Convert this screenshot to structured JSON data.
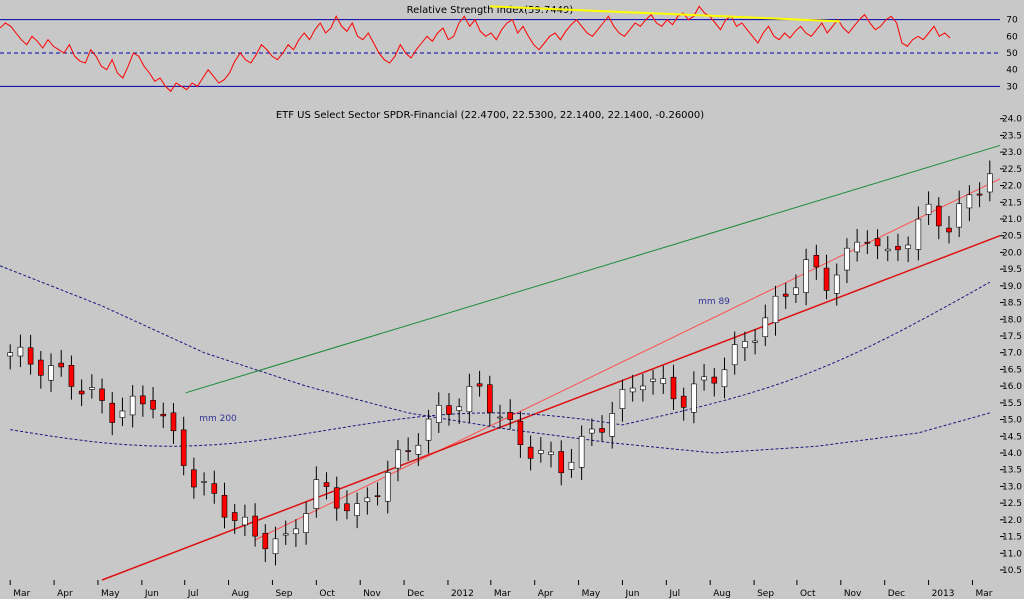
{
  "chart_data": [
    {
      "type": "line",
      "title": "Relative Strength Index(59.7449)",
      "ylim": [
        20,
        80
      ],
      "y_ticks": [
        30,
        40,
        50,
        60,
        70
      ],
      "reference_lines": {
        "solid": [
          30,
          70
        ],
        "dashed": [
          50
        ]
      },
      "colors": {
        "rsi": "#ff0000",
        "trendline": "#ffff00",
        "levels": "#0000aa"
      },
      "trendline": {
        "from": {
          "x": 49.0,
          "y": 78
        },
        "to": {
          "x": 84.0,
          "y": 69
        }
      },
      "series": [
        {
          "values": [
            65,
            68,
            66,
            62,
            58,
            55,
            60,
            57,
            53,
            58,
            54,
            52,
            50,
            55,
            48,
            45,
            44,
            52,
            48,
            42,
            40,
            46,
            38,
            35,
            42,
            50,
            48,
            42,
            38,
            33,
            35,
            30,
            27,
            32,
            30,
            28,
            32,
            30,
            35,
            40,
            36,
            32,
            34,
            38,
            45,
            50,
            46,
            44,
            49,
            55,
            52,
            48,
            46,
            50,
            55,
            52,
            58,
            62,
            58,
            64,
            68,
            62,
            65,
            72,
            66,
            63,
            68,
            60,
            58,
            62,
            56,
            50,
            46,
            44,
            48,
            55,
            50,
            47,
            52,
            56,
            60,
            57,
            62,
            65,
            58,
            60,
            68,
            72,
            66,
            70,
            63,
            60,
            62,
            58,
            64,
            68,
            70,
            62,
            66,
            60,
            55,
            52,
            56,
            60,
            62,
            58,
            63,
            67,
            70,
            66,
            62,
            60,
            64,
            68,
            72,
            66,
            62,
            60,
            64,
            68,
            66,
            70,
            73,
            68,
            66,
            70,
            67,
            72,
            74,
            70,
            72,
            78,
            74,
            72,
            68,
            64,
            70,
            72,
            66,
            68,
            64,
            60,
            56,
            62,
            66,
            60,
            58,
            62,
            59,
            63,
            66,
            62,
            60,
            64,
            68,
            62,
            66,
            70,
            65,
            62,
            66,
            70,
            73,
            68,
            64,
            66,
            70,
            72,
            68,
            56,
            54,
            58,
            60,
            58,
            62,
            66,
            60,
            62,
            59
          ]
        }
      ]
    },
    {
      "type": "candlestick",
      "title": "ETF US Select Sector SPDR-Financial (22.4700, 22.5300, 22.1400, 22.1400, -0.26000)",
      "ylim": [
        10.2,
        24.2
      ],
      "y_ticks": [
        10.5,
        11.0,
        11.5,
        12.0,
        12.5,
        13.0,
        13.5,
        14.0,
        14.5,
        15.0,
        15.5,
        16.0,
        16.5,
        17.0,
        17.5,
        18.0,
        18.5,
        19.0,
        19.5,
        20.0,
        20.5,
        21.0,
        21.5,
        22.0,
        22.5,
        23.0,
        23.5,
        24.0
      ],
      "x_axis": {
        "range": [
          -1,
          97
        ],
        "labels": [
          {
            "x": 0.0,
            "label": "Mar"
          },
          {
            "x": 4.3,
            "label": "Apr"
          },
          {
            "x": 8.6,
            "label": "May"
          },
          {
            "x": 12.9,
            "label": "Jun"
          },
          {
            "x": 17.1,
            "label": "Jul"
          },
          {
            "x": 21.4,
            "label": "Aug"
          },
          {
            "x": 25.7,
            "label": "Sep"
          },
          {
            "x": 30.0,
            "label": "Oct"
          },
          {
            "x": 34.3,
            "label": "Nov"
          },
          {
            "x": 38.6,
            "label": "Dec"
          },
          {
            "x": 42.9,
            "label": "2012"
          },
          {
            "x": 47.1,
            "label": "Mar"
          },
          {
            "x": 51.4,
            "label": "Apr"
          },
          {
            "x": 55.7,
            "label": "May"
          },
          {
            "x": 60.0,
            "label": "Jun"
          },
          {
            "x": 64.3,
            "label": "Jul"
          },
          {
            "x": 68.6,
            "label": "Aug"
          },
          {
            "x": 72.9,
            "label": "Sep"
          },
          {
            "x": 77.1,
            "label": "Oct"
          },
          {
            "x": 81.4,
            "label": "Nov"
          },
          {
            "x": 85.7,
            "label": "Dec"
          },
          {
            "x": 90.0,
            "label": "2013"
          },
          {
            "x": 94.3,
            "label": "Mar"
          }
        ]
      },
      "colors": {
        "up": "#ffffff",
        "down": "#ff0000",
        "wick": "#000000",
        "ma200": "#1a1a80",
        "ma89": "#1a1a80",
        "resistance": "#1a8a3a",
        "support_inner": "#ff5050",
        "support_outer": "#dd1111"
      },
      "annotations": [
        {
          "label": "mm 200",
          "x": 32,
          "y": 14.95,
          "color": "#333399"
        },
        {
          "label": "mm 89",
          "x": 105,
          "y": 18.45,
          "color": "#333399"
        }
      ],
      "ma200": [
        {
          "x": 0,
          "y": 19.6
        },
        {
          "x": 10,
          "y": 18.4
        },
        {
          "x": 20,
          "y": 17.0
        },
        {
          "x": 30,
          "y": 16.0
        },
        {
          "x": 40,
          "y": 15.2
        },
        {
          "x": 50,
          "y": 14.7
        },
        {
          "x": 60,
          "y": 14.3
        },
        {
          "x": 70,
          "y": 14.0
        },
        {
          "x": 80,
          "y": 14.2
        },
        {
          "x": 90,
          "y": 14.6
        },
        {
          "x": 97,
          "y": 15.2
        }
      ],
      "series": [
        {
          "name": "ohlc",
          "x": [
            0
          ],
          "open": [
            17.0
          ],
          "high": [
            17.2
          ],
          "low": [
            16.8
          ],
          "close": [
            17.1
          ]
        }
      ]
    }
  ],
  "x_axis_labels": [
    {
      "x": 0.0,
      "label": "Mar"
    },
    {
      "x": 4.3,
      "label": "Apr"
    },
    {
      "x": 8.6,
      "label": "May"
    },
    {
      "x": 12.9,
      "label": "Jun"
    },
    {
      "x": 17.1,
      "label": "Jul"
    },
    {
      "x": 21.4,
      "label": "Aug"
    },
    {
      "x": 25.7,
      "label": "Sep"
    },
    {
      "x": 30.0,
      "label": "Oct"
    },
    {
      "x": 34.3,
      "label": "Nov"
    },
    {
      "x": 38.6,
      "label": "Dec"
    },
    {
      "x": 42.9,
      "label": "2012"
    },
    {
      "x": 47.1,
      "label": "Mar"
    },
    {
      "x": 51.4,
      "label": "Apr"
    },
    {
      "x": 55.7,
      "label": "May"
    },
    {
      "x": 60.0,
      "label": "Jun"
    },
    {
      "x": 64.3,
      "label": "Jul"
    },
    {
      "x": 68.6,
      "label": "Aug"
    },
    {
      "x": 72.9,
      "label": "Sep"
    },
    {
      "x": 77.1,
      "label": "Oct"
    },
    {
      "x": 81.4,
      "label": "Nov"
    },
    {
      "x": 85.7,
      "label": "Dec"
    },
    {
      "x": 90.0,
      "label": "2013"
    },
    {
      "x": 94.3,
      "label": "Mar"
    }
  ]
}
